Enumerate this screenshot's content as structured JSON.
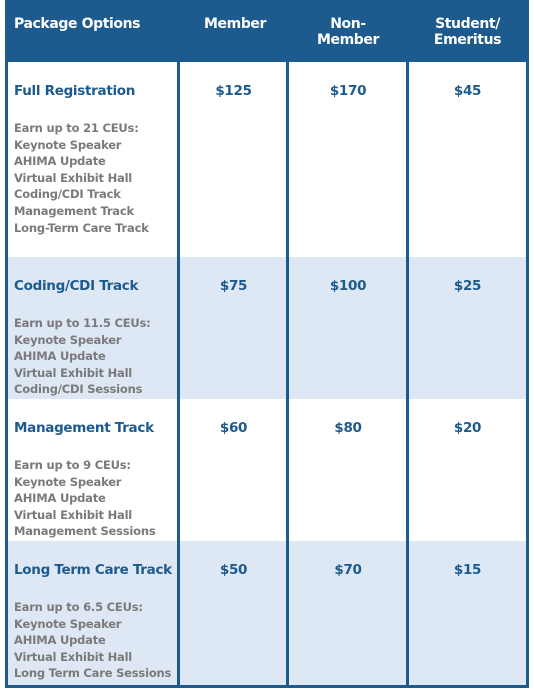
{
  "header": [
    "Package Options",
    "Member",
    "Non-Member",
    "Student/ Emeritus"
  ],
  "rows": [
    {
      "name": "Full Registration",
      "prices": [
        "$125",
        "$170",
        "$45"
      ],
      "details": [
        "Earn up to 21 CEUs:",
        "Keynote Speaker",
        "AHIMA Update",
        "Virtual Exhibit Hall",
        "Coding/CDI Track",
        "Management Track",
        "Long-Term Care Track"
      ]
    },
    {
      "name": "Coding/CDI Track",
      "prices": [
        "$75",
        "$100",
        "$25"
      ],
      "details": [
        "Earn up to 11.5 CEUs:",
        "Keynote Speaker",
        "AHIMA Update",
        "Virtual Exhibit Hall",
        "Coding/CDI Sessions"
      ]
    },
    {
      "name": "Management Track",
      "prices": [
        "$60",
        "$80",
        "$20"
      ],
      "details": [
        "Earn up to 9 CEUs:",
        "Keynote Speaker",
        "AHIMA Update",
        "Virtual Exhibit Hall",
        "Management Sessions"
      ]
    },
    {
      "name": "Long Term Care Track",
      "prices": [
        "$50",
        "$70",
        "$15"
      ],
      "details": [
        "Earn up to 6.5 CEUs:",
        "Keynote Speaker",
        "AHIMA Update",
        "Virtual Exhibit Hall",
        "Long Term Care Sessions"
      ]
    }
  ]
}
